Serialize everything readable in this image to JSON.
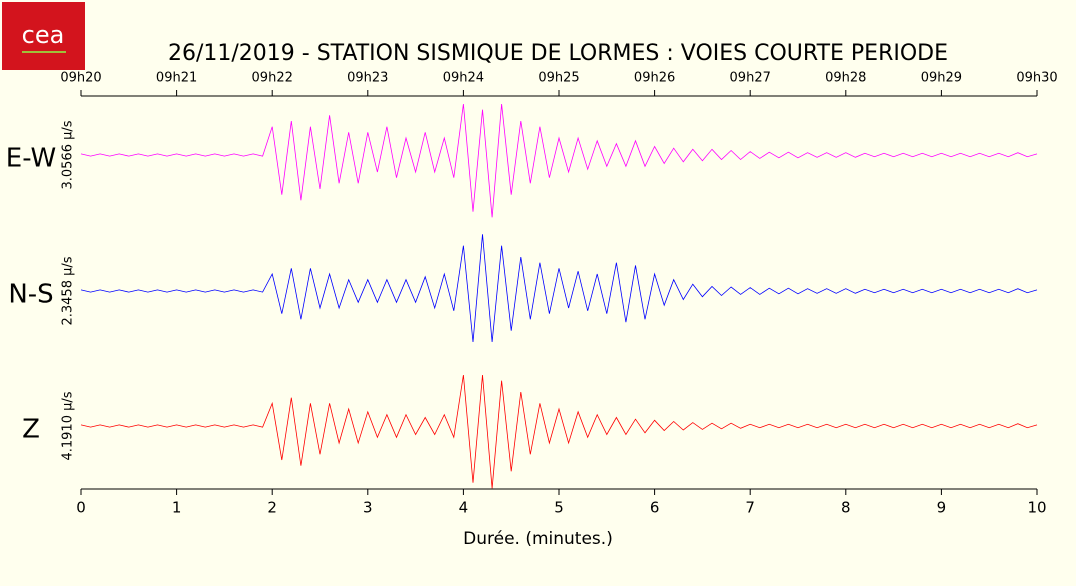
{
  "chart_data": {
    "type": "seismogram",
    "logo_text": "cea",
    "title": "26/11/2019  -  STATION SISMIQUE DE LORMES : VOIES COURTE PERIODE",
    "x_label": "Durée.  (minutes.)",
    "xlim": [
      0,
      10
    ],
    "xticks": [
      0,
      1,
      2,
      3,
      4,
      5,
      6,
      7,
      8,
      9,
      10
    ],
    "x2ticks": [
      {
        "value": 0,
        "label": "09h20"
      },
      {
        "value": 1,
        "label": "09h21"
      },
      {
        "value": 2,
        "label": "09h22"
      },
      {
        "value": 3,
        "label": "09h23"
      },
      {
        "value": 4,
        "label": "09h24"
      },
      {
        "value": 5,
        "label": "09h25"
      },
      {
        "value": 6,
        "label": "09h26"
      },
      {
        "value": 7,
        "label": "09h27"
      },
      {
        "value": 8,
        "label": "09h28"
      },
      {
        "value": 9,
        "label": "09h29"
      },
      {
        "value": 10,
        "label": "09h30"
      }
    ],
    "ylim": [
      -1.2,
      1.2
    ],
    "x": [
      0,
      0.1,
      0.2,
      0.3,
      0.4,
      0.5,
      0.6,
      0.7,
      0.8,
      0.9,
      1,
      1.1,
      1.2,
      1.3,
      1.4,
      1.5,
      1.6,
      1.7,
      1.8,
      1.9,
      2,
      2.1,
      2.2,
      2.3,
      2.4,
      2.5,
      2.6,
      2.7,
      2.8,
      2.9,
      3,
      3.1,
      3.2,
      3.3,
      3.4,
      3.5,
      3.6,
      3.7,
      3.8,
      3.9,
      4,
      4.1,
      4.2,
      4.3,
      4.4,
      4.5,
      4.6,
      4.7,
      4.8,
      4.9,
      5,
      5.1,
      5.2,
      5.3,
      5.4,
      5.5,
      5.6,
      5.7,
      5.8,
      5.9,
      6,
      6.1,
      6.2,
      6.3,
      6.4,
      6.5,
      6.6,
      6.7,
      6.8,
      6.9,
      7,
      7.1,
      7.2,
      7.3,
      7.4,
      7.5,
      7.6,
      7.7,
      7.8,
      7.9,
      8,
      8.1,
      8.2,
      8.3,
      8.4,
      8.5,
      8.6,
      8.7,
      8.8,
      8.9,
      9,
      9.1,
      9.2,
      9.3,
      9.4,
      9.5,
      9.6,
      9.7,
      9.8,
      9.9,
      10
    ],
    "series": [
      {
        "name": "E-W",
        "scale_label": "3.0566 µ/s",
        "color": "#ff00ff",
        "values": [
          0.02,
          -0.02,
          0.02,
          -0.02,
          0.02,
          -0.02,
          0.02,
          -0.02,
          0.02,
          -0.02,
          0.02,
          -0.02,
          0.02,
          -0.02,
          0.02,
          -0.02,
          0.02,
          -0.02,
          0.02,
          -0.02,
          0.5,
          -0.7,
          0.6,
          -0.8,
          0.5,
          -0.6,
          0.7,
          -0.5,
          0.4,
          -0.5,
          0.4,
          -0.3,
          0.5,
          -0.4,
          0.3,
          -0.3,
          0.4,
          -0.3,
          0.3,
          -0.4,
          0.9,
          -1.0,
          0.8,
          -1.1,
          0.9,
          -0.7,
          0.6,
          -0.5,
          0.5,
          -0.4,
          0.3,
          -0.3,
          0.3,
          -0.25,
          0.25,
          -0.2,
          0.2,
          -0.2,
          0.25,
          -0.2,
          0.15,
          -0.15,
          0.12,
          -0.12,
          0.1,
          -0.1,
          0.1,
          -0.08,
          0.08,
          -0.08,
          0.06,
          -0.06,
          0.05,
          -0.05,
          0.05,
          -0.05,
          0.04,
          -0.04,
          0.04,
          -0.04,
          0.04,
          -0.04,
          0.03,
          -0.03,
          0.03,
          -0.03,
          0.03,
          -0.03,
          0.03,
          -0.03,
          0.03,
          -0.03,
          0.03,
          -0.03,
          0.03,
          -0.03,
          0.03,
          -0.03,
          0.04,
          -0.03,
          0.02
        ]
      },
      {
        "name": "N-S",
        "scale_label": "2.3458 µ/s",
        "color": "#0000ff",
        "values": [
          0.02,
          -0.02,
          0.02,
          -0.02,
          0.02,
          -0.02,
          0.02,
          -0.02,
          0.02,
          -0.02,
          0.02,
          -0.02,
          0.02,
          -0.02,
          0.02,
          -0.02,
          0.02,
          -0.02,
          0.02,
          -0.02,
          0.3,
          -0.4,
          0.4,
          -0.5,
          0.4,
          -0.3,
          0.3,
          -0.3,
          0.2,
          -0.2,
          0.2,
          -0.2,
          0.2,
          -0.2,
          0.2,
          -0.2,
          0.25,
          -0.3,
          0.3,
          -0.35,
          0.8,
          -0.9,
          1.0,
          -0.9,
          0.8,
          -0.7,
          0.6,
          -0.5,
          0.5,
          -0.4,
          0.4,
          -0.3,
          0.35,
          -0.35,
          0.3,
          -0.4,
          0.5,
          -0.55,
          0.45,
          -0.5,
          0.3,
          -0.25,
          0.2,
          -0.15,
          0.12,
          -0.1,
          0.08,
          -0.08,
          0.07,
          -0.06,
          0.06,
          -0.06,
          0.05,
          -0.05,
          0.05,
          -0.05,
          0.04,
          -0.04,
          0.04,
          -0.04,
          0.04,
          -0.04,
          0.03,
          -0.03,
          0.03,
          -0.03,
          0.03,
          -0.03,
          0.03,
          -0.03,
          0.03,
          -0.03,
          0.03,
          -0.03,
          0.03,
          -0.03,
          0.03,
          -0.03,
          0.04,
          -0.03,
          0.02
        ]
      },
      {
        "name": "Z",
        "scale_label": "4.1910 µ/s",
        "color": "#ff0000",
        "values": [
          0.02,
          -0.02,
          0.02,
          -0.02,
          0.02,
          -0.02,
          0.02,
          -0.02,
          0.02,
          -0.02,
          0.02,
          -0.02,
          0.02,
          -0.02,
          0.02,
          -0.02,
          0.02,
          -0.02,
          0.02,
          -0.02,
          0.4,
          -0.6,
          0.5,
          -0.7,
          0.4,
          -0.5,
          0.4,
          -0.3,
          0.3,
          -0.3,
          0.25,
          -0.2,
          0.2,
          -0.2,
          0.2,
          -0.15,
          0.15,
          -0.15,
          0.2,
          -0.2,
          0.9,
          -1.0,
          0.9,
          -1.1,
          0.8,
          -0.8,
          0.6,
          -0.5,
          0.4,
          -0.3,
          0.3,
          -0.3,
          0.25,
          -0.2,
          0.2,
          -0.15,
          0.15,
          -0.15,
          0.12,
          -0.12,
          0.1,
          -0.08,
          0.08,
          -0.07,
          0.06,
          -0.06,
          0.05,
          -0.05,
          0.05,
          -0.04,
          0.03,
          -0.03,
          0.03,
          -0.03,
          0.03,
          -0.03,
          0.03,
          -0.03,
          0.03,
          -0.03,
          0.03,
          -0.03,
          0.03,
          -0.03,
          0.03,
          -0.03,
          0.03,
          -0.03,
          0.03,
          -0.03,
          0.03,
          -0.03,
          0.03,
          -0.03,
          0.03,
          -0.03,
          0.03,
          -0.03,
          0.04,
          -0.03,
          0.02
        ]
      }
    ]
  }
}
